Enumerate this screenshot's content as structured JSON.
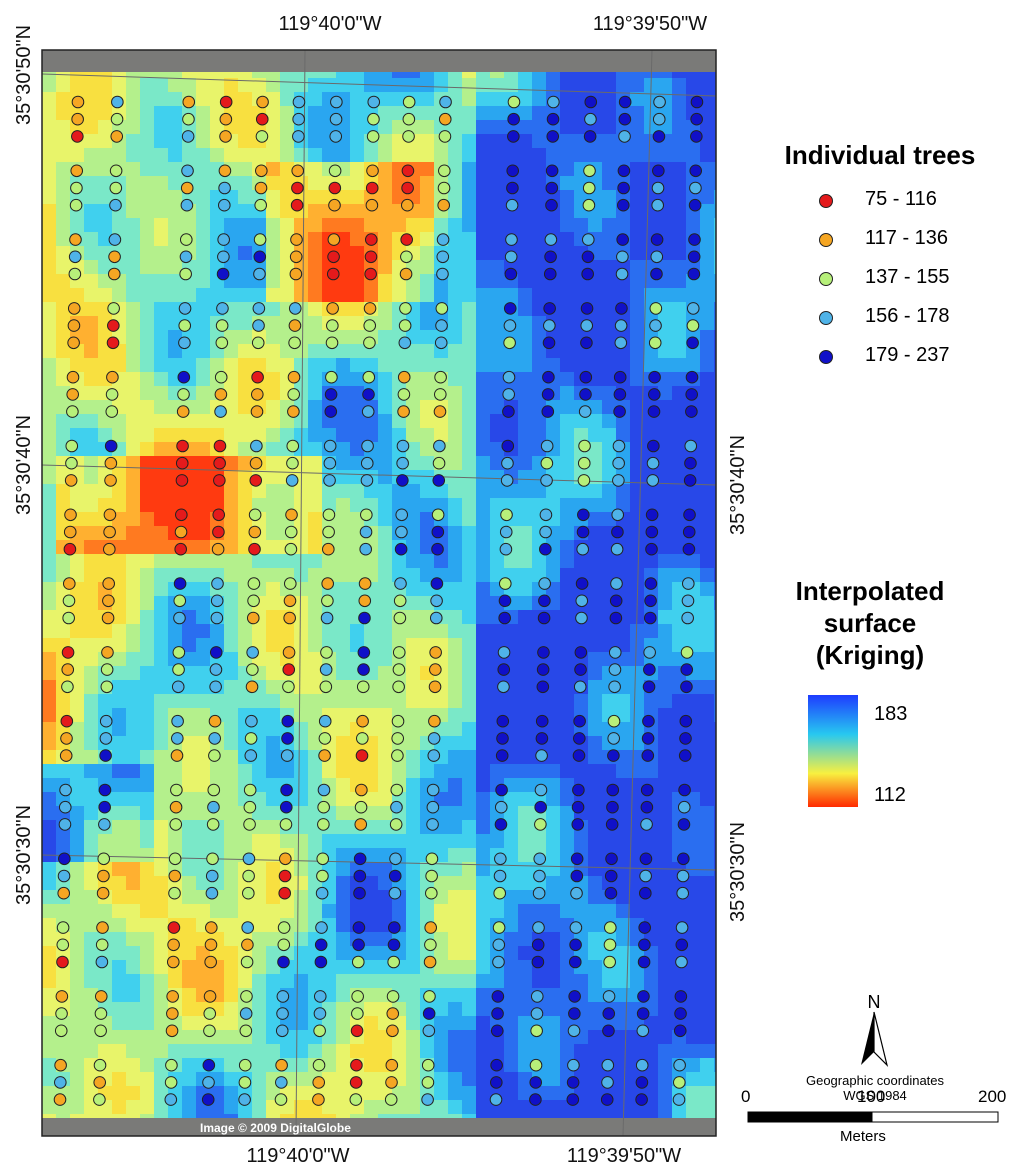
{
  "coords": {
    "top": [
      "119°40'0\"W",
      "119°39'50\"W"
    ],
    "bottom": [
      "119°40'0\"W",
      "119°39'50\"W"
    ],
    "left": [
      "35°30'50\"N",
      "35°30'40\"N",
      "35°30'30\"N"
    ],
    "right": [
      "35°30'40\"N",
      "35°30'30\"N"
    ]
  },
  "credit": "Image © 2009 DigitalGlobe",
  "legend_trees": {
    "title": "Individual trees",
    "classes": [
      {
        "label": "75 - 116",
        "color": "#e41a1c"
      },
      {
        "label": "117 - 136",
        "color": "#f5a623"
      },
      {
        "label": "137 - 155",
        "color": "#b7f07a"
      },
      {
        "label": "156 - 178",
        "color": "#4fb3e8"
      },
      {
        "label": "179 - 237",
        "color": "#1010c8"
      }
    ]
  },
  "legend_surface": {
    "title_line1": "Interpolated",
    "title_line2": "surface",
    "title_line3": "(Kriging)",
    "max_label": "183",
    "min_label": "112",
    "gradient_colors": [
      "#1e3cff",
      "#27c8f0",
      "#f8f040",
      "#ff2a00"
    ]
  },
  "north_arrow": {
    "label": "N"
  },
  "crs": {
    "line1": "Geographic coordinates",
    "line2": "WGS 1984"
  },
  "scale_bar": {
    "ticks": [
      "0",
      "100",
      "200"
    ],
    "unit": "Meters"
  }
}
